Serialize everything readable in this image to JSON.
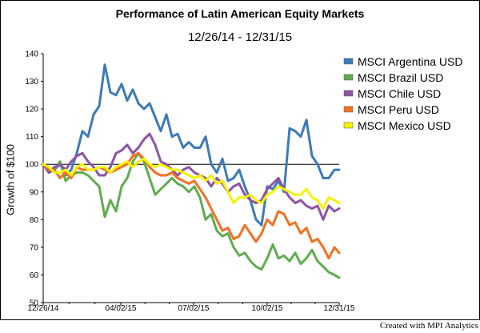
{
  "chart_data": {
    "type": "line",
    "title": "Performance of Latin American Equity Markets",
    "subtitle": "12/26/14 - 12/31/15",
    "ylabel": "Growth of $100",
    "xlabel": "",
    "ylim": [
      50,
      140
    ],
    "yticks": [
      50,
      60,
      70,
      80,
      90,
      100,
      110,
      120,
      130,
      140
    ],
    "xlim": [
      "2014-12-26",
      "2015-12-31"
    ],
    "xticks": [
      {
        "date": "2014-12-26",
        "label": "12/26/14"
      },
      {
        "date": "2015-04-02",
        "label": "04/02/15"
      },
      {
        "date": "2015-07-02",
        "label": "07/02/15"
      },
      {
        "date": "2015-10-02",
        "label": "10/02/15"
      },
      {
        "date": "2015-12-31",
        "label": "12/31/15"
      }
    ],
    "reference_line": 100,
    "grid": false,
    "legend_position": "top-right",
    "x": [
      "2014-12-26",
      "2015-01-02",
      "2015-01-09",
      "2015-01-16",
      "2015-01-23",
      "2015-01-30",
      "2015-02-06",
      "2015-02-13",
      "2015-02-20",
      "2015-02-27",
      "2015-03-06",
      "2015-03-13",
      "2015-03-20",
      "2015-03-27",
      "2015-04-03",
      "2015-04-10",
      "2015-04-17",
      "2015-04-24",
      "2015-05-01",
      "2015-05-08",
      "2015-05-15",
      "2015-05-22",
      "2015-05-29",
      "2015-06-05",
      "2015-06-12",
      "2015-06-19",
      "2015-06-26",
      "2015-07-03",
      "2015-07-10",
      "2015-07-17",
      "2015-07-24",
      "2015-07-31",
      "2015-08-07",
      "2015-08-14",
      "2015-08-21",
      "2015-08-28",
      "2015-09-04",
      "2015-09-11",
      "2015-09-18",
      "2015-09-25",
      "2015-10-02",
      "2015-10-09",
      "2015-10-16",
      "2015-10-23",
      "2015-10-30",
      "2015-11-06",
      "2015-11-13",
      "2015-11-20",
      "2015-11-27",
      "2015-12-04",
      "2015-12-11",
      "2015-12-18",
      "2015-12-25",
      "2015-12-31"
    ],
    "series": [
      {
        "name": "MSCI Argentina USD",
        "color": "#3d7ab8",
        "values": [
          100,
          97,
          98,
          100,
          96,
          98,
          104,
          112,
          110,
          118,
          121,
          136,
          126,
          125,
          129,
          123,
          127,
          122,
          120,
          122,
          117,
          112,
          118,
          110,
          111,
          106,
          108,
          106,
          106,
          110,
          100,
          97,
          102,
          94,
          95,
          98,
          92,
          87,
          80,
          78,
          92,
          91,
          94,
          90,
          113,
          112,
          110,
          116,
          103,
          100,
          95,
          95,
          98,
          98
        ]
      },
      {
        "name": "MSCI Brazil USD",
        "color": "#5fac4e",
        "values": [
          100,
          97,
          98,
          101,
          94,
          96,
          97,
          97,
          96,
          94,
          92,
          81,
          87,
          83,
          92,
          95,
          101,
          104,
          101,
          95,
          89,
          91,
          93,
          95,
          93,
          92,
          90,
          92,
          88,
          80,
          82,
          76,
          74,
          75,
          70,
          67,
          68,
          65,
          63,
          62,
          66,
          71,
          66,
          67,
          65,
          68,
          64,
          66,
          69,
          65,
          63,
          61,
          60,
          59
        ]
      },
      {
        "name": "MSCI Chile USD",
        "color": "#8f53a3",
        "values": [
          100,
          97,
          99,
          100,
          98,
          101,
          103,
          104,
          101,
          99,
          96,
          96,
          99,
          104,
          105,
          107,
          104,
          106,
          109,
          111,
          107,
          101,
          100,
          98,
          96,
          98,
          99,
          97,
          96,
          95,
          92,
          95,
          93,
          90,
          92,
          93,
          89,
          87,
          86,
          87,
          91,
          93,
          95,
          91,
          88,
          86,
          87,
          85,
          84,
          85,
          80,
          85,
          83,
          84
        ]
      },
      {
        "name": "MSCI Peru USD",
        "color": "#f37021",
        "values": [
          100,
          98,
          98,
          95,
          97,
          95,
          99,
          98,
          98,
          98,
          99,
          98,
          97,
          98,
          99,
          100,
          103,
          104,
          102,
          99,
          97,
          96,
          96,
          97,
          95,
          94,
          93,
          94,
          91,
          88,
          84,
          80,
          76,
          77,
          73,
          74,
          78,
          75,
          72,
          75,
          80,
          78,
          83,
          82,
          78,
          79,
          75,
          77,
          72,
          73,
          70,
          66,
          70,
          68
        ]
      },
      {
        "name": "MSCI Mexico USD",
        "color": "#f5f200",
        "values": [
          100,
          99,
          97,
          97,
          98,
          96,
          99,
          100,
          98,
          98,
          99,
          99,
          97,
          99,
          100,
          101,
          99,
          101,
          102,
          100,
          99,
          100,
          99,
          98,
          98,
          97,
          96,
          95,
          96,
          94,
          96,
          93,
          94,
          90,
          86,
          88,
          88,
          89,
          87,
          86,
          89,
          90,
          92,
          91,
          90,
          89,
          89,
          91,
          88,
          87,
          84,
          88,
          87,
          86
        ]
      }
    ]
  },
  "credit": "Created with MPI Analytics"
}
